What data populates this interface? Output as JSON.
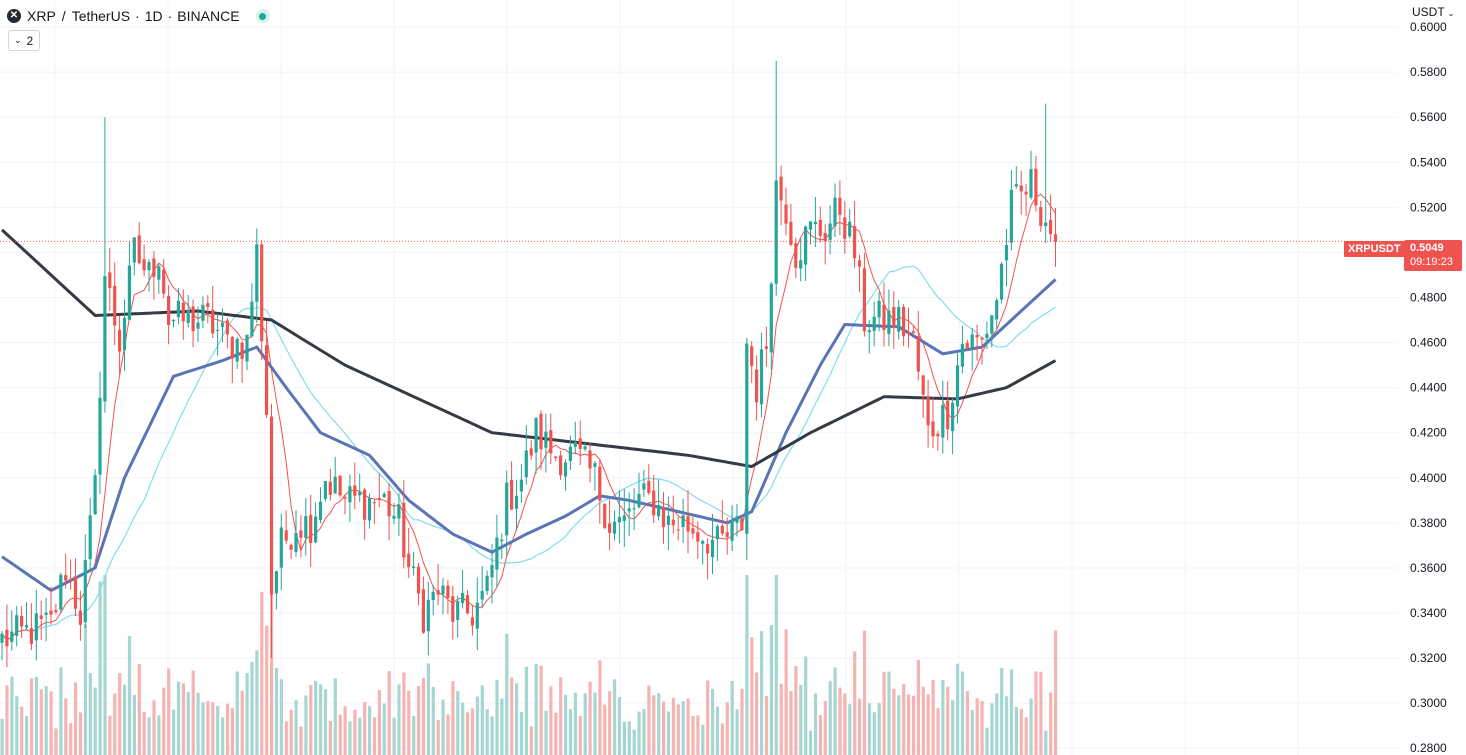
{
  "header": {
    "symbol": "XRP",
    "separator": "/",
    "quote": "TetherUS",
    "interval": "1D",
    "exchange": "BINANCE",
    "dot": "·",
    "logo_glyph": "✕"
  },
  "indicators_button": {
    "chevron": "⌄",
    "count": "2"
  },
  "currency_button": {
    "label": "USDT",
    "chevron": "⌄"
  },
  "last_price": {
    "symbol_tag": "XRPUSDT",
    "value": "0.5049",
    "countdown": "09:19:23"
  },
  "colors": {
    "up": "#26a69a",
    "down": "#ef5350",
    "vol_up": "#a5d6d2",
    "vol_down": "#f5b3b1",
    "ma_slow": "#363a45",
    "ma_mid": "#5b74b5",
    "ma_fast": "#ef5350",
    "ma_cyan": "#80deea",
    "grid": "#f0f3fa",
    "price_line": "#ef5350"
  },
  "chart_data": {
    "type": "candlestick",
    "ylim": [
      0.277,
      0.612
    ],
    "y_ticks": [
      "0.6000",
      "0.5800",
      "0.5600",
      "0.5400",
      "0.5200",
      "0.5000",
      "0.4800",
      "0.4600",
      "0.4400",
      "0.4200",
      "0.4000",
      "0.3800",
      "0.3600",
      "0.3400",
      "0.3200",
      "0.3000",
      "0.2800"
    ],
    "last_close": 0.5049,
    "waypoints": [
      {
        "i": 0,
        "p": 0.328
      },
      {
        "i": 10,
        "p": 0.335
      },
      {
        "i": 13,
        "p": 0.36
      },
      {
        "i": 16,
        "p": 0.34
      },
      {
        "i": 19,
        "p": 0.395
      },
      {
        "i": 21,
        "p": 0.49
      },
      {
        "i": 24,
        "p": 0.46
      },
      {
        "i": 27,
        "p": 0.5
      },
      {
        "i": 30,
        "p": 0.49
      },
      {
        "i": 32,
        "p": 0.5
      },
      {
        "i": 34,
        "p": 0.47
      },
      {
        "i": 38,
        "p": 0.47
      },
      {
        "i": 42,
        "p": 0.47
      },
      {
        "i": 46,
        "p": 0.46
      },
      {
        "i": 50,
        "p": 0.46
      },
      {
        "i": 52,
        "p": 0.5
      },
      {
        "i": 54,
        "p": 0.43
      },
      {
        "i": 55,
        "p": 0.35
      },
      {
        "i": 57,
        "p": 0.37
      },
      {
        "i": 60,
        "p": 0.38
      },
      {
        "i": 63,
        "p": 0.38
      },
      {
        "i": 66,
        "p": 0.4
      },
      {
        "i": 70,
        "p": 0.39
      },
      {
        "i": 74,
        "p": 0.39
      },
      {
        "i": 78,
        "p": 0.39
      },
      {
        "i": 81,
        "p": 0.38
      },
      {
        "i": 83,
        "p": 0.36
      },
      {
        "i": 86,
        "p": 0.34
      },
      {
        "i": 89,
        "p": 0.35
      },
      {
        "i": 92,
        "p": 0.34
      },
      {
        "i": 96,
        "p": 0.34
      },
      {
        "i": 99,
        "p": 0.35
      },
      {
        "i": 103,
        "p": 0.39
      },
      {
        "i": 106,
        "p": 0.4
      },
      {
        "i": 109,
        "p": 0.42
      },
      {
        "i": 113,
        "p": 0.41
      },
      {
        "i": 117,
        "p": 0.41
      },
      {
        "i": 121,
        "p": 0.4
      },
      {
        "i": 124,
        "p": 0.38
      },
      {
        "i": 127,
        "p": 0.38
      },
      {
        "i": 130,
        "p": 0.39
      },
      {
        "i": 133,
        "p": 0.39
      },
      {
        "i": 136,
        "p": 0.38
      },
      {
        "i": 139,
        "p": 0.38
      },
      {
        "i": 143,
        "p": 0.375
      },
      {
        "i": 146,
        "p": 0.37
      },
      {
        "i": 149,
        "p": 0.375
      },
      {
        "i": 151,
        "p": 0.38
      },
      {
        "i": 152,
        "p": 0.46
      },
      {
        "i": 154,
        "p": 0.44
      },
      {
        "i": 156,
        "p": 0.46
      },
      {
        "i": 158,
        "p": 0.53
      },
      {
        "i": 160,
        "p": 0.52
      },
      {
        "i": 162,
        "p": 0.5
      },
      {
        "i": 165,
        "p": 0.51
      },
      {
        "i": 168,
        "p": 0.51
      },
      {
        "i": 171,
        "p": 0.52
      },
      {
        "i": 174,
        "p": 0.5
      },
      {
        "i": 176,
        "p": 0.47
      },
      {
        "i": 180,
        "p": 0.47
      },
      {
        "i": 183,
        "p": 0.47
      },
      {
        "i": 186,
        "p": 0.46
      },
      {
        "i": 189,
        "p": 0.42
      },
      {
        "i": 193,
        "p": 0.43
      },
      {
        "i": 196,
        "p": 0.46
      },
      {
        "i": 200,
        "p": 0.46
      },
      {
        "i": 203,
        "p": 0.48
      },
      {
        "i": 206,
        "p": 0.52
      },
      {
        "i": 210,
        "p": 0.53
      },
      {
        "i": 213,
        "p": 0.515
      },
      {
        "i": 215,
        "p": 0.5049
      }
    ],
    "ma_slow_waypoints": [
      {
        "i": 0,
        "p": 0.51
      },
      {
        "i": 19,
        "p": 0.472
      },
      {
        "i": 40,
        "p": 0.474
      },
      {
        "i": 55,
        "p": 0.47
      },
      {
        "i": 70,
        "p": 0.45
      },
      {
        "i": 100,
        "p": 0.42
      },
      {
        "i": 120,
        "p": 0.415
      },
      {
        "i": 140,
        "p": 0.41
      },
      {
        "i": 153,
        "p": 0.405
      },
      {
        "i": 165,
        "p": 0.42
      },
      {
        "i": 180,
        "p": 0.436
      },
      {
        "i": 195,
        "p": 0.435
      },
      {
        "i": 205,
        "p": 0.44
      },
      {
        "i": 215,
        "p": 0.452
      }
    ],
    "ma_mid_waypoints": [
      {
        "i": 0,
        "p": 0.365
      },
      {
        "i": 10,
        "p": 0.35
      },
      {
        "i": 19,
        "p": 0.36
      },
      {
        "i": 25,
        "p": 0.4
      },
      {
        "i": 35,
        "p": 0.445
      },
      {
        "i": 45,
        "p": 0.452
      },
      {
        "i": 52,
        "p": 0.458
      },
      {
        "i": 58,
        "p": 0.44
      },
      {
        "i": 65,
        "p": 0.42
      },
      {
        "i": 75,
        "p": 0.41
      },
      {
        "i": 83,
        "p": 0.39
      },
      {
        "i": 92,
        "p": 0.375
      },
      {
        "i": 100,
        "p": 0.367
      },
      {
        "i": 107,
        "p": 0.375
      },
      {
        "i": 115,
        "p": 0.383
      },
      {
        "i": 122,
        "p": 0.392
      },
      {
        "i": 128,
        "p": 0.39
      },
      {
        "i": 138,
        "p": 0.385
      },
      {
        "i": 148,
        "p": 0.38
      },
      {
        "i": 153,
        "p": 0.385
      },
      {
        "i": 160,
        "p": 0.42
      },
      {
        "i": 167,
        "p": 0.45
      },
      {
        "i": 172,
        "p": 0.468
      },
      {
        "i": 183,
        "p": 0.467
      },
      {
        "i": 192,
        "p": 0.455
      },
      {
        "i": 200,
        "p": 0.458
      },
      {
        "i": 207,
        "p": 0.472
      },
      {
        "i": 215,
        "p": 0.488
      }
    ],
    "ma_fast_period": 7,
    "ma_cyan_period": 30
  }
}
